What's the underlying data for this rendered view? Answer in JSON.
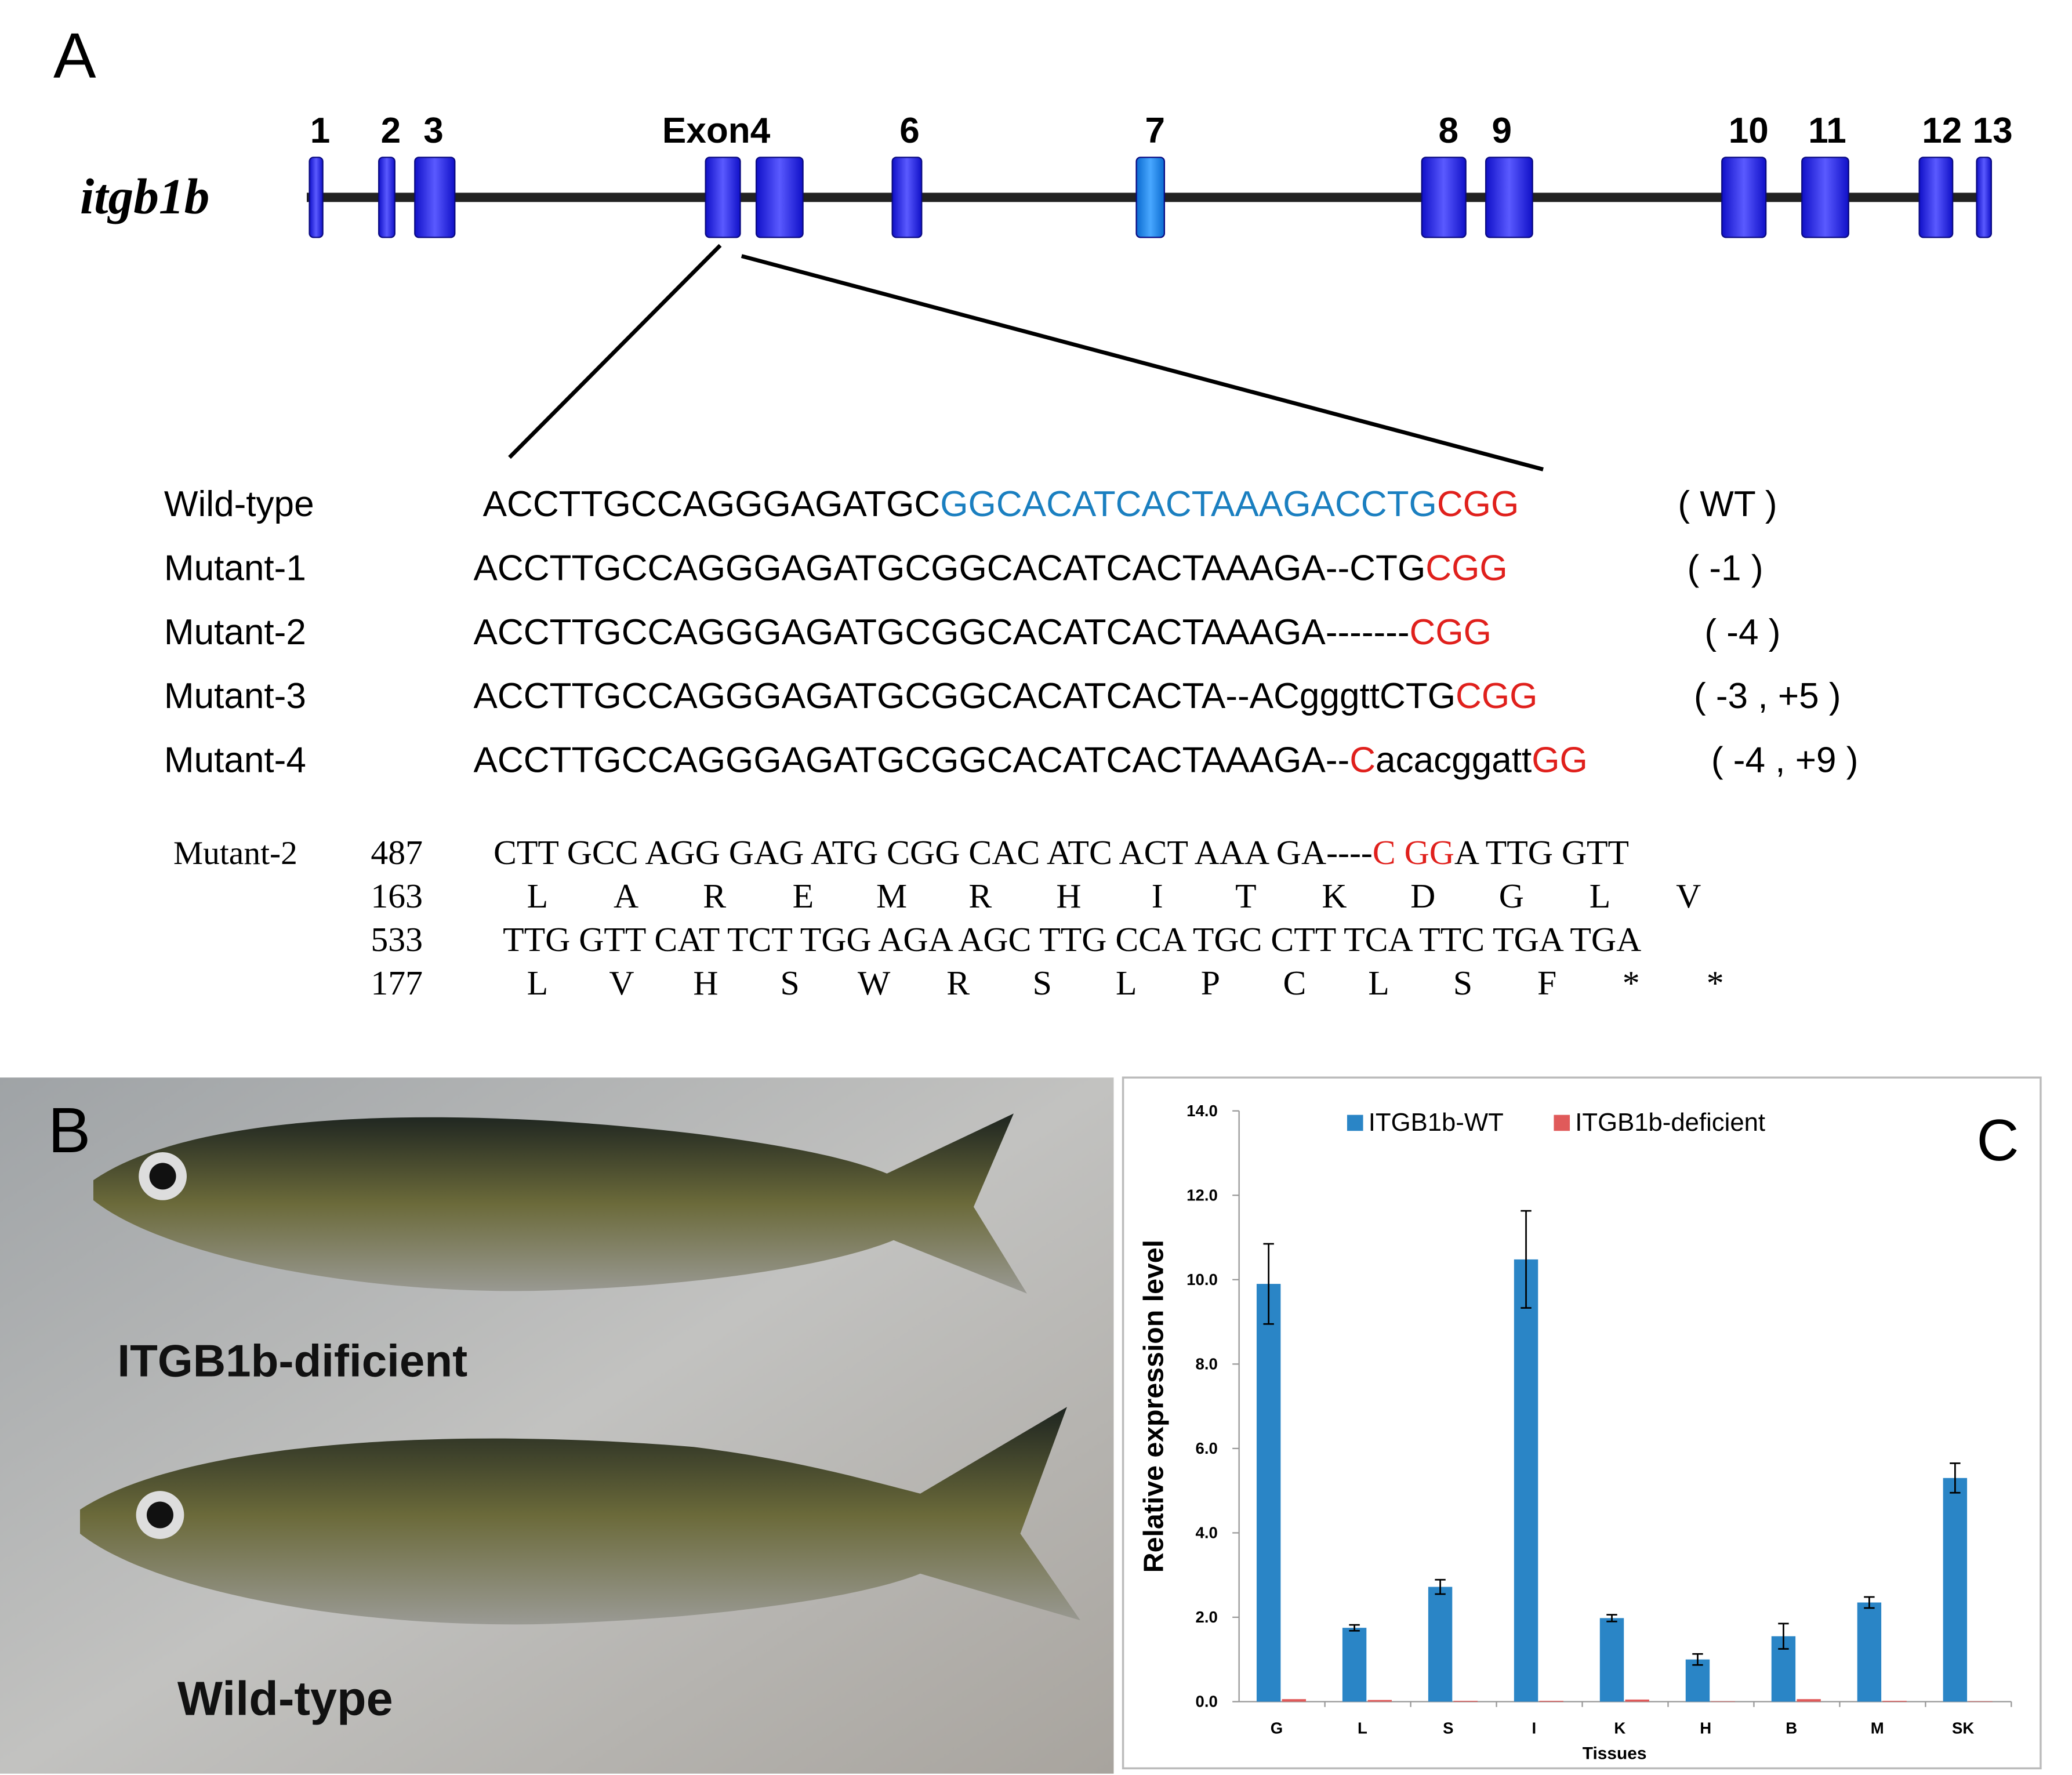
{
  "panel_a": {
    "label": "A",
    "gene": "itgb1b",
    "exon_labels": [
      "1",
      "2",
      "3",
      "Exon4",
      "6",
      "7",
      "8",
      "9",
      "10",
      "11",
      "12",
      "13"
    ],
    "sequences": [
      {
        "name": "Wild-type",
        "segments": [
          {
            "text": "ACCTTGCCAGGGAGATGC",
            "color": "#000000"
          },
          {
            "text": "GGCACATCACTAAAGACCTG",
            "color": "#1a7fc0"
          },
          {
            "text": "CGG",
            "color": "#e0201c"
          }
        ],
        "note": "( WT )"
      },
      {
        "name": "Mutant-1",
        "segments": [
          {
            "text": "ACCTTGCCAGGGAGATGCGGCACATCACTAAAGA--CTG",
            "color": "#000000"
          },
          {
            "text": "CGG",
            "color": "#e0201c"
          }
        ],
        "note": "( -1 )"
      },
      {
        "name": "Mutant-2",
        "segments": [
          {
            "text": "ACCTTGCCAGGGAGATGCGGCACATCACTAAAGA-------",
            "color": "#000000"
          },
          {
            "text": "CGG",
            "color": "#e0201c"
          }
        ],
        "note": "( -4 )"
      },
      {
        "name": "Mutant-3",
        "segments": [
          {
            "text": "ACCTTGCCAGGGAGATGCGGCACATCACTA--ACgggttCTG",
            "color": "#000000"
          },
          {
            "text": "CGG",
            "color": "#e0201c"
          }
        ],
        "note": "( -3 , +5 )"
      },
      {
        "name": "Mutant-4",
        "segments": [
          {
            "text": "ACCTTGCCAGGGAGATGCGGCACATCACTAAAGA--",
            "color": "#000000"
          },
          {
            "text": "C",
            "color": "#e0201c"
          },
          {
            "text": "acacggatt",
            "color": "#000000"
          },
          {
            "text": "GG",
            "color": "#e0201c"
          }
        ],
        "note": "( -4 , +9 )"
      }
    ],
    "translation": {
      "name": "Mutant-2",
      "rows": [
        {
          "number": "487",
          "segments": [
            {
              "text": "CTT GCC AGG GAG ATG CGG CAC ATC ACT AAA GA----",
              "color": "#000000"
            },
            {
              "text": "C GG",
              "color": "#e0201c"
            },
            {
              "text": "A TTG GTT",
              "color": "#000000"
            }
          ]
        },
        {
          "number": "163",
          "residues": [
            "L",
            "A",
            "R",
            "E",
            "M",
            "R",
            "H",
            "I",
            "T",
            "K",
            "D",
            "G",
            "L",
            "V"
          ]
        },
        {
          "number": "533",
          "segments": [
            {
              "text": "TTG GTT CAT TCT TGG AGA AGC TTG CCA TGC CTT TCA TTC TGA TGA",
              "color": "#000000"
            }
          ]
        },
        {
          "number": "177",
          "residues": [
            "L",
            "V",
            "H",
            "S",
            "W",
            "R",
            "S",
            "L",
            "P",
            "C",
            "L",
            "S",
            "F",
            "*",
            "*"
          ]
        }
      ]
    }
  },
  "panel_b": {
    "label": "B",
    "fish_labels": [
      "ITGB1b-dificient",
      "Wild-type"
    ]
  },
  "chart_data": {
    "type": "bar",
    "panel_label": "C",
    "x_label": "Tissues",
    "y_label": "Relative expression level",
    "categories": [
      "G",
      "L",
      "S",
      "I",
      "K",
      "H",
      "B",
      "M",
      "SK"
    ],
    "series": [
      {
        "name": "ITGB1b-WT",
        "color": "#2a85c6",
        "values": [
          9.9,
          1.75,
          2.72,
          10.48,
          1.98,
          1.0,
          1.55,
          2.35,
          5.3
        ],
        "errors": [
          0.95,
          0.07,
          0.17,
          1.15,
          0.08,
          0.13,
          0.3,
          0.13,
          0.35
        ]
      },
      {
        "name": "ITGB1b-deficient",
        "color": "#e05a5a",
        "values": [
          0.06,
          0.04,
          0.02,
          0.02,
          0.05,
          0.01,
          0.06,
          0.02,
          0.01
        ]
      }
    ],
    "ylim": [
      0,
      14
    ],
    "yticks": [
      {
        "value": 0,
        "label": "0.0"
      },
      {
        "value": 2,
        "label": "2.0"
      },
      {
        "value": 4,
        "label": "4.0"
      },
      {
        "value": 6,
        "label": "6.0"
      },
      {
        "value": 8,
        "label": "8.0"
      },
      {
        "value": 10,
        "label": "10.0"
      },
      {
        "value": 12,
        "label": "12.0"
      },
      {
        "value": 14,
        "label": "14.0"
      }
    ],
    "legend": "top"
  }
}
